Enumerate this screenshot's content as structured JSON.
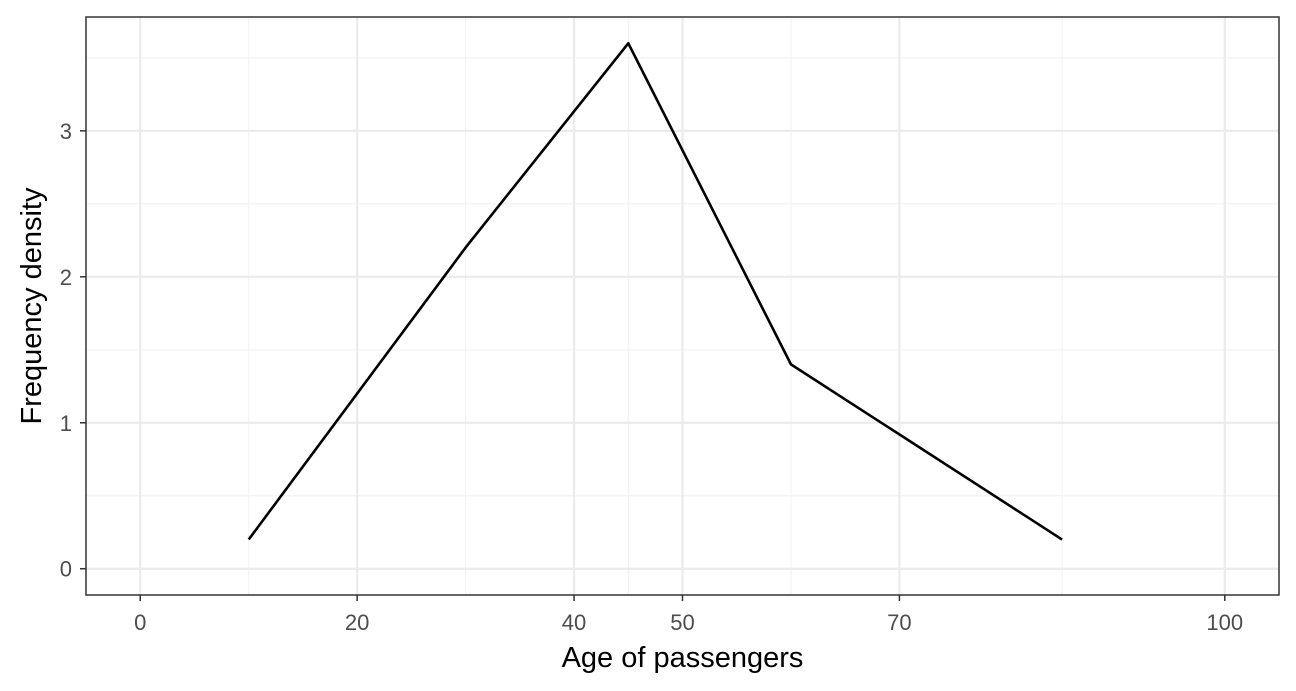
{
  "chart_data": {
    "type": "line",
    "title": "",
    "xlabel": "Age of passengers",
    "ylabel": "Frequency density",
    "x_ticks": [
      0,
      20,
      40,
      50,
      70,
      100
    ],
    "y_ticks": [
      0,
      1,
      2,
      3
    ],
    "x_tick_labels": [
      "0",
      "20",
      "40",
      "50",
      "70",
      "100"
    ],
    "y_tick_labels": [
      "0",
      "1",
      "2",
      "3"
    ],
    "xlim": [
      -5,
      105
    ],
    "ylim": [
      -0.18,
      3.78
    ],
    "grid": true,
    "series": [
      {
        "x": [
          10,
          30,
          45,
          60,
          85
        ],
        "y": [
          0.2,
          2.2,
          3.6,
          1.4,
          0.2
        ]
      }
    ],
    "colors": {
      "line": "#000000",
      "grid_major": "#ebebeb",
      "grid_minor": "#f3f3f3",
      "panel_border": "#333333",
      "tick_text": "#4d4d4d"
    }
  }
}
